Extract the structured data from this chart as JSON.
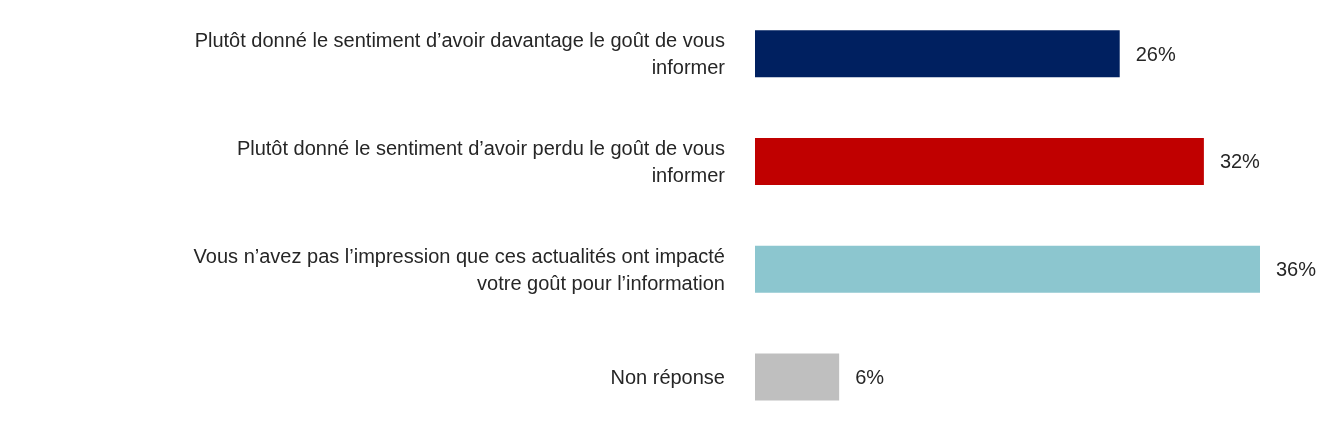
{
  "chart_data": {
    "type": "bar",
    "orientation": "horizontal",
    "categories": [
      "Plutôt donné le sentiment d’avoir davantage le goût de vous informer",
      "Plutôt donné le sentiment d’avoir perdu le goût de vous informer",
      "Vous n’avez pas l’impression que ces actualités ont impacté votre goût pour l’information",
      "Non réponse"
    ],
    "values": [
      26,
      32,
      36,
      6
    ],
    "colors": [
      "#002060",
      "#c00000",
      "#8cc6cf",
      "#bfbfbf"
    ],
    "value_labels": [
      "26%",
      "32%",
      "36%",
      "6%"
    ],
    "grid": false,
    "legend": false
  }
}
